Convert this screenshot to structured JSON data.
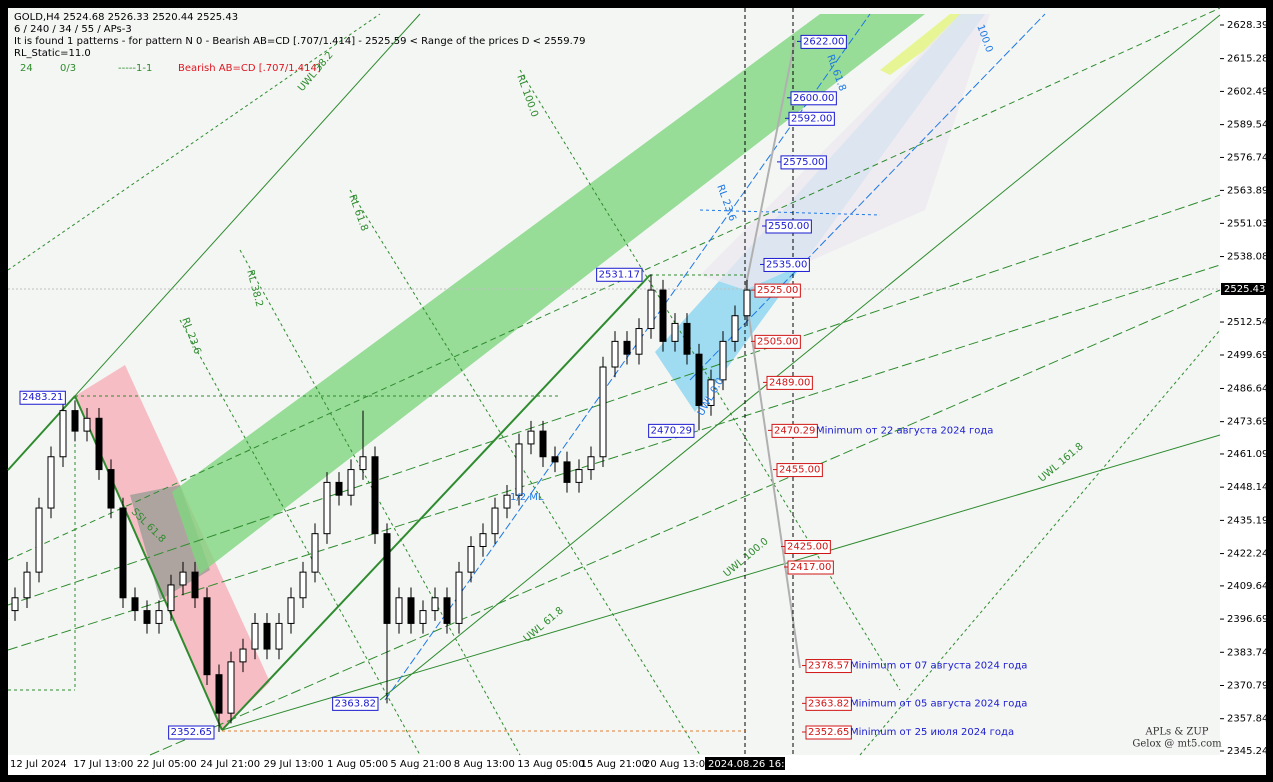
{
  "chart_data": {
    "type": "candlestick",
    "header": [
      "GOLD,H4  2524.68 2526.33 2520.44 2525.43",
      "6 / 240 / 34 / 55 / APs-3",
      "It is found 1 patterns  -  for pattern N 0 - Bearish AB=CD [.707/1.414] - 2525.59 < Range of the prices D < 2559.79",
      "RL_Static=11.0"
    ],
    "status": [
      {
        "text": "24",
        "color": "#2e8b2e"
      },
      {
        "text": "0/3",
        "color": "#2e8b2e"
      },
      {
        "text": "-----1-1",
        "color": "#2e8b2e"
      },
      {
        "text": "Bearish AB=CD [.707/1.414]",
        "color": "#e0141e"
      }
    ],
    "ylim": [
      2343.68,
      2635.02
    ],
    "yticks": [
      2628.39,
      2615.28,
      2602.49,
      2589.54,
      2576.74,
      2563.89,
      2551.03,
      2538.08,
      2512.54,
      2499.69,
      2486.64,
      2473.69,
      2461.09,
      2448.14,
      2435.19,
      2422.24,
      2409.64,
      2396.69,
      2383.74,
      2370.79,
      2357.84,
      2345.24
    ],
    "current_price": 2525.43,
    "x_labels": [
      "12 Jul 2024",
      "17 Jul 13:00",
      "22 Jul 05:00",
      "24 Jul 21:00",
      "29 Jul 13:00",
      "1 Aug 05:00",
      "5 Aug 21:00",
      "8 Aug 13:00",
      "13 Aug 05:00",
      "15 Aug 21:00",
      "20 Aug 13:00"
    ],
    "cursor_time": "2024.08.26 16:23",
    "up_color": "#000000",
    "down_color": "#000000",
    "open": [
      2400,
      2405,
      2415,
      2440,
      2460,
      2478,
      2470,
      2475,
      2455,
      2440,
      2405,
      2400,
      2395,
      2400,
      2410,
      2415,
      2405,
      2375,
      2360,
      2380,
      2385,
      2395,
      2385,
      2395,
      2405,
      2415,
      2430,
      2450,
      2445,
      2455,
      2460,
      2430,
      2395,
      2405,
      2395,
      2400,
      2405,
      2395,
      2415,
      2425,
      2430,
      2440,
      2445,
      2465,
      2470,
      2460,
      2458,
      2450,
      2455,
      2460,
      2495,
      2505,
      2500,
      2510,
      2525,
      2505,
      2512,
      2500,
      2480,
      2490,
      2505,
      2515
    ],
    "high": [
      2409,
      2419,
      2444,
      2464,
      2483,
      2482,
      2479,
      2479,
      2459,
      2444,
      2409,
      2404,
      2404,
      2414,
      2419,
      2419,
      2409,
      2379,
      2384,
      2389,
      2399,
      2399,
      2399,
      2409,
      2419,
      2434,
      2454,
      2454,
      2459,
      2478,
      2464,
      2434,
      2409,
      2409,
      2404,
      2409,
      2409,
      2419,
      2429,
      2434,
      2444,
      2449,
      2469,
      2474,
      2474,
      2464,
      2462,
      2459,
      2464,
      2499,
      2509,
      2509,
      2514,
      2531.17,
      2529,
      2516,
      2516,
      2504,
      2494,
      2509,
      2519,
      2529
    ],
    "low": [
      2396,
      2401,
      2411,
      2436,
      2456,
      2466,
      2466,
      2451,
      2436,
      2401,
      2396,
      2391,
      2391,
      2396,
      2406,
      2401,
      2371,
      2352.65,
      2356,
      2376,
      2381,
      2381,
      2381,
      2391,
      2401,
      2411,
      2426,
      2441,
      2441,
      2451,
      2426,
      2363.82,
      2391,
      2391,
      2391,
      2396,
      2391,
      2391,
      2411,
      2421,
      2426,
      2436,
      2441,
      2461,
      2456,
      2454,
      2446,
      2446,
      2451,
      2456,
      2491,
      2496,
      2496,
      2506,
      2501,
      2501,
      2496,
      2470.29,
      2476,
      2486,
      2501,
      2511
    ],
    "close": [
      2405,
      2415,
      2440,
      2460,
      2478,
      2470,
      2475,
      2455,
      2440,
      2405,
      2400,
      2395,
      2400,
      2410,
      2415,
      2405,
      2375,
      2360,
      2380,
      2385,
      2395,
      2385,
      2395,
      2405,
      2415,
      2430,
      2450,
      2445,
      2455,
      2460,
      2430,
      2395,
      2405,
      2395,
      2400,
      2405,
      2395,
      2415,
      2425,
      2430,
      2440,
      2445,
      2465,
      2470,
      2460,
      2458,
      2450,
      2455,
      2460,
      2495,
      2505,
      2500,
      2510,
      2525,
      2505,
      2512,
      2500,
      2480,
      2490,
      2505,
      2515,
      2525
    ],
    "points": [
      {
        "value": 2483.21,
        "label": "2483.21"
      },
      {
        "value": 2352.65,
        "label": "2352.65"
      },
      {
        "value": 2363.82,
        "label": "2363.82"
      },
      {
        "value": 2531.17,
        "label": "2531.17"
      },
      {
        "value": 2470.29,
        "label": "2470.29"
      }
    ],
    "levels": [
      {
        "value": 2622,
        "label": "2622.00",
        "color": "#1a1ad0"
      },
      {
        "value": 2600,
        "label": "2600.00",
        "color": "#1a1ad0"
      },
      {
        "value": 2592,
        "label": "2592.00",
        "color": "#1a1ad0"
      },
      {
        "value": 2575,
        "label": "2575.00",
        "color": "#1a1ad0"
      },
      {
        "value": 2550,
        "label": "2550.00",
        "color": "#1a1ad0"
      },
      {
        "value": 2535,
        "label": "2535.00",
        "color": "#1a1ad0"
      },
      {
        "value": 2525,
        "label": "2525.00",
        "color": "#d01414"
      },
      {
        "value": 2505,
        "label": "2505.00",
        "color": "#d01414"
      },
      {
        "value": 2489,
        "label": "2489.00",
        "color": "#d01414"
      },
      {
        "value": 2470.29,
        "label": "2470.29",
        "color": "#d01414",
        "note": "Minimum от 22 августа 2024 года"
      },
      {
        "value": 2455,
        "label": "2455.00",
        "color": "#d01414"
      },
      {
        "value": 2425,
        "label": "2425.00",
        "color": "#d01414"
      },
      {
        "value": 2417,
        "label": "2417.00",
        "color": "#d01414"
      },
      {
        "value": 2378.57,
        "label": "2378.57",
        "color": "#d01414",
        "note": "Minimum от 07 августа 2024 года"
      },
      {
        "value": 2363.82,
        "label": "2363.82",
        "color": "#d01414",
        "note": "Minimum от 05 августа 2024 года"
      },
      {
        "value": 2352.65,
        "label": "2352.65",
        "color": "#d01414",
        "note": "Minimum от 25 июля 2024 года"
      }
    ],
    "line_labels": [
      "UWL 38.2",
      "RL 100.0",
      "RL 61.8",
      "RL 38.2",
      "RL 23.6",
      "SSL 61.8",
      "1/2 ML",
      "UWL 61.8",
      "UWL 100.0",
      "UWL 161.8",
      "UWL 0.0",
      "RL 61.8",
      "RL 23.6",
      "100.0"
    ],
    "watermark": [
      "APLs & ZUP",
      "Gelox @ mt5.com"
    ]
  }
}
